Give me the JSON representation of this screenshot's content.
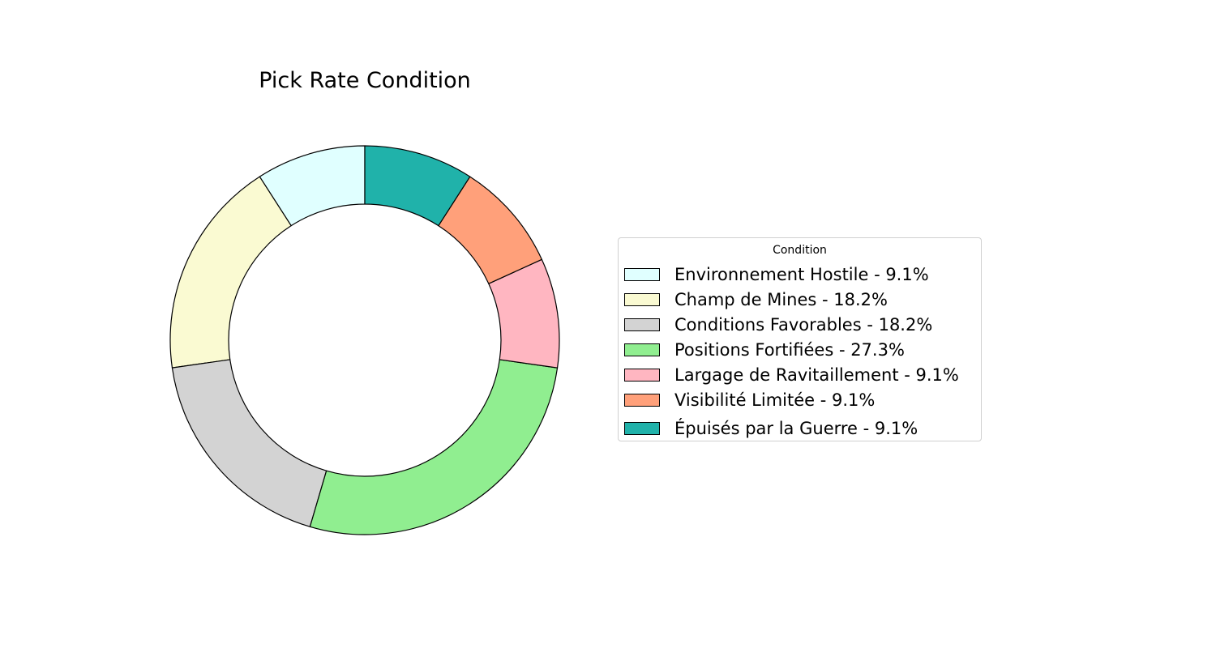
{
  "chart_data": {
    "type": "pie",
    "donut": true,
    "title": "Pick Rate Condition",
    "legend": {
      "title": "Condition",
      "placement": "right"
    },
    "start_angle_deg": 90,
    "direction": "counterclockwise",
    "slices": [
      {
        "label": "Environnement Hostile - 9.1%",
        "category": "Environnement Hostile",
        "value": 9.1,
        "color": "#e0ffff"
      },
      {
        "label": "Champ de Mines - 18.2%",
        "category": "Champ de Mines",
        "value": 18.2,
        "color": "#fafad2"
      },
      {
        "label": "Conditions Favorables - 18.2%",
        "category": "Conditions Favorables",
        "value": 18.2,
        "color": "#d3d3d3"
      },
      {
        "label": "Positions Fortifiées - 27.3%",
        "category": "Positions Fortifiées",
        "value": 27.3,
        "color": "#90ee90"
      },
      {
        "label": "Largage de Ravitaillement - 9.1%",
        "category": "Largage de Ravitaillement",
        "value": 9.1,
        "color": "#ffb6c1"
      },
      {
        "label": "Visibilité Limitée - 9.1%",
        "category": "Visibilité Limitée",
        "value": 9.1,
        "color": "#ffa07a"
      },
      {
        "label": "Épuisés par la Guerre - 9.1%",
        "category": "Épuisés par la Guerre",
        "value": 9.1,
        "color": "#20b2aa"
      }
    ]
  }
}
